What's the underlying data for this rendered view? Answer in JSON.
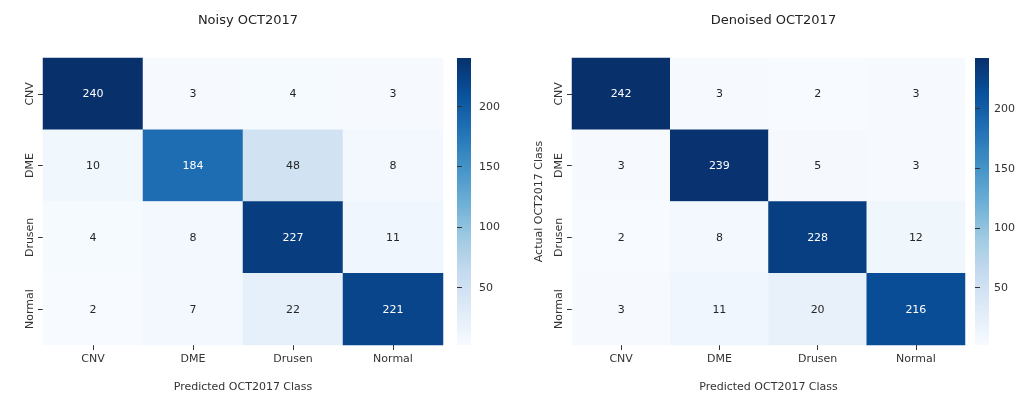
{
  "chart_data": [
    {
      "type": "heatmap",
      "title": "Noisy OCT2017",
      "xlabel": "Predicted OCT2017 Class",
      "categories": [
        "CNV",
        "DME",
        "Drusen",
        "Normal"
      ],
      "y_categories": [
        "CNV",
        "DME",
        "Drusen",
        "Normal"
      ],
      "cells": [
        [
          240,
          3,
          4,
          3
        ],
        [
          10,
          184,
          48,
          8
        ],
        [
          4,
          8,
          227,
          11
        ],
        [
          2,
          7,
          22,
          221
        ]
      ],
      "data_labels": true,
      "clim": [
        2,
        240
      ],
      "cticks": [
        50,
        100,
        150,
        200
      ]
    },
    {
      "type": "heatmap",
      "title": "Denoised OCT2017",
      "xlabel": "Predicted OCT2017 Class",
      "ylabel": "Actual OCT2017 Class",
      "categories": [
        "CNV",
        "DME",
        "Drusen",
        "Normal"
      ],
      "y_categories": [
        "CNV",
        "DME",
        "Drusen",
        "Normal"
      ],
      "cells": [
        [
          242,
          3,
          2,
          3
        ],
        [
          3,
          239,
          5,
          3
        ],
        [
          2,
          8,
          228,
          12
        ],
        [
          3,
          11,
          20,
          216
        ]
      ],
      "data_labels": true,
      "clim": [
        2,
        242
      ],
      "cticks": [
        50,
        100,
        150,
        200
      ]
    }
  ]
}
